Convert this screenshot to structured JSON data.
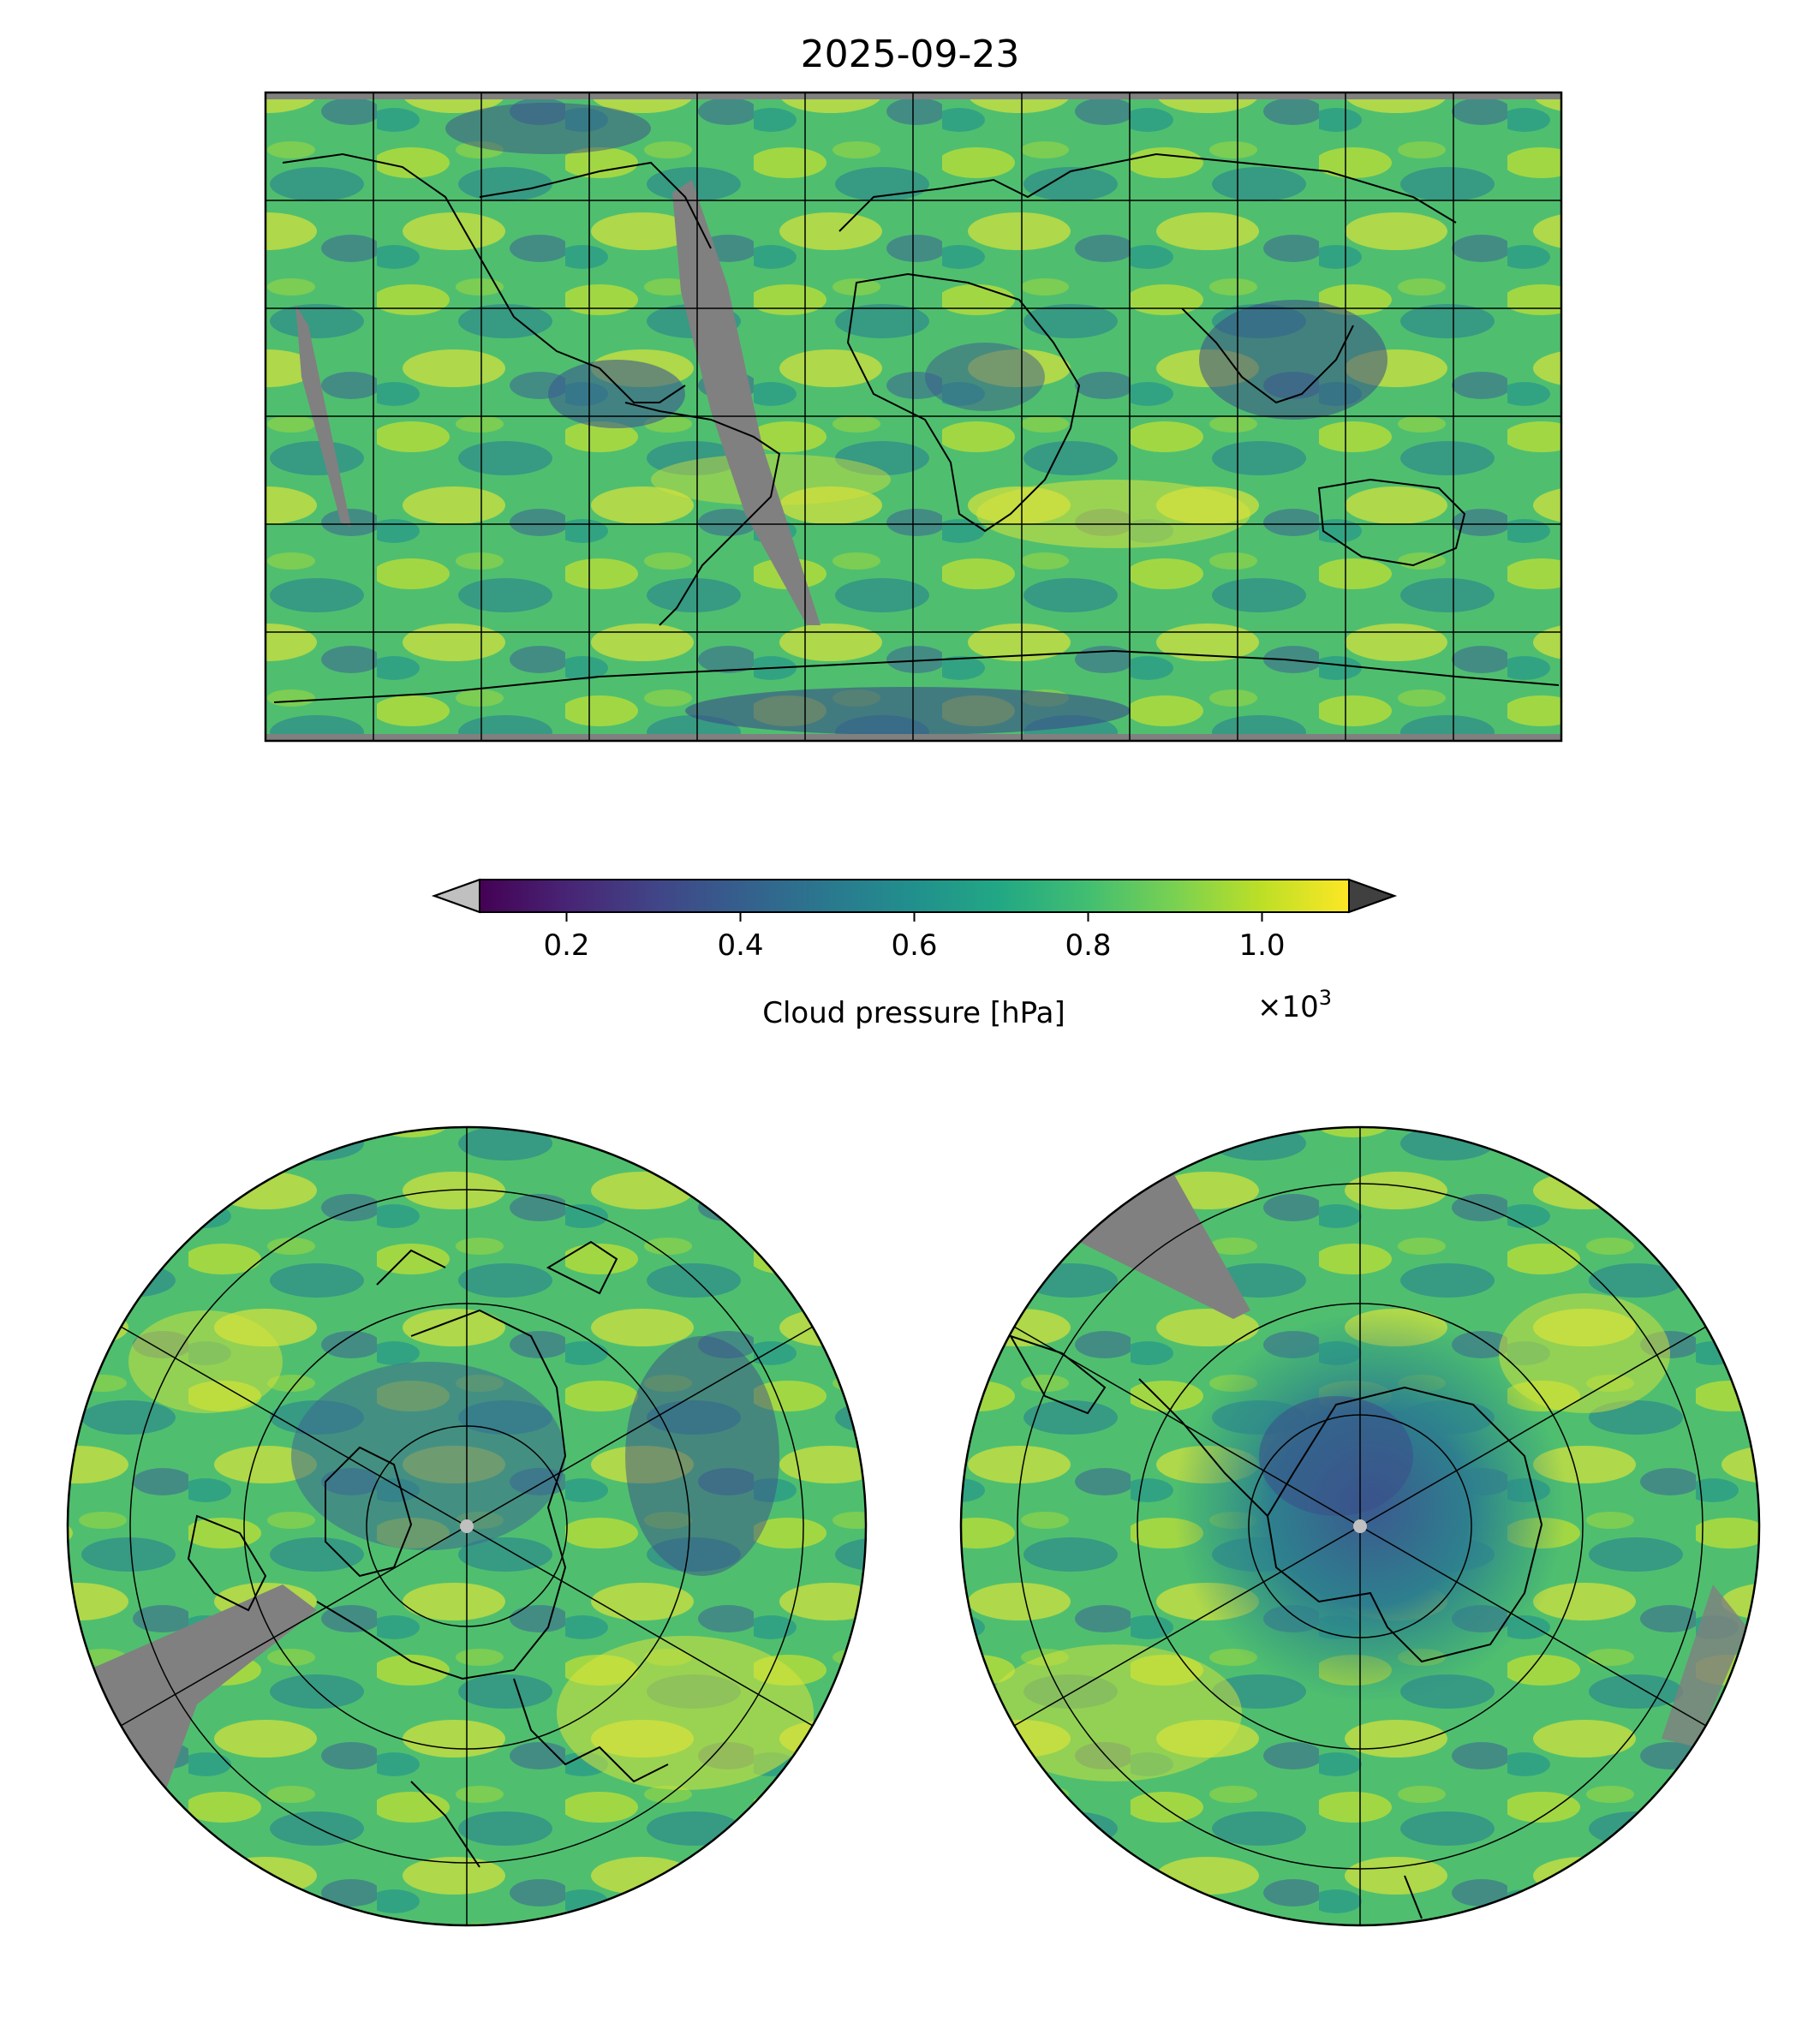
{
  "title": "2025-09-23",
  "colorbar": {
    "label": "Cloud pressure [hPa]",
    "multiplier_base": "×10",
    "multiplier_exp": "3",
    "ticks": [
      "0.2",
      "0.4",
      "0.6",
      "0.8",
      "1.0"
    ],
    "tick_values": [
      0.2,
      0.4,
      0.6,
      0.8,
      1.0
    ],
    "range": [
      0.1,
      1.1
    ],
    "colormap": "viridis",
    "under_color": "#c0c0c0",
    "over_color": "#404040",
    "missing_color": "#808080"
  },
  "maps": [
    {
      "name": "global",
      "projection": "plate-carree",
      "gridlines": true,
      "coastlines": true
    },
    {
      "name": "north-polar",
      "projection": "north-polar-stereographic",
      "gridlines": true,
      "coastlines": true
    },
    {
      "name": "south-polar",
      "projection": "south-polar-stereographic",
      "gridlines": true,
      "coastlines": true
    }
  ]
}
